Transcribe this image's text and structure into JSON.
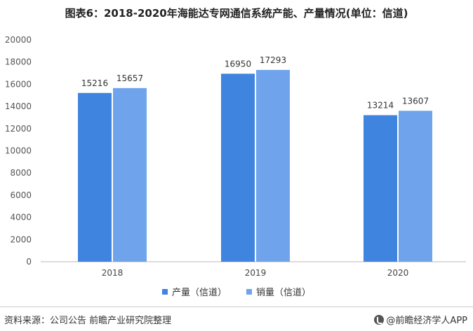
{
  "title": "图表6：2018-2020年海能达专网通信系统产能、产量情况(单位：信道)",
  "source": "资料来源：公司公告 前瞻产业研究院整理",
  "brand": "@前瞻经济学人APP",
  "colors": {
    "production": "#3F85DF",
    "sales": "#6FA4EC",
    "grid": "#E6E6E6"
  },
  "chart_data": {
    "type": "bar",
    "categories": [
      "2018",
      "2019",
      "2020"
    ],
    "series": [
      {
        "name": "产量（信道）",
        "values": [
          15216,
          16950,
          13214
        ]
      },
      {
        "name": "销量（信道）",
        "values": [
          15657,
          17293,
          13607
        ]
      }
    ],
    "ylim": [
      0,
      20000
    ],
    "yticks": [
      0,
      2000,
      4000,
      6000,
      8000,
      10000,
      12000,
      14000,
      16000,
      18000,
      20000
    ],
    "legend_position": "bottom-center",
    "grid": false
  }
}
